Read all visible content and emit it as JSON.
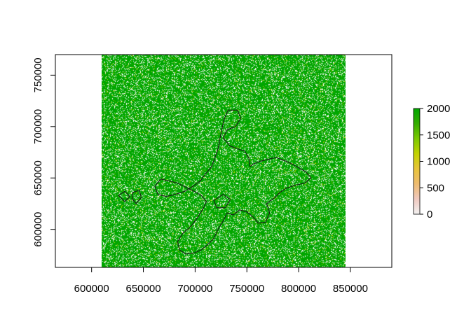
{
  "chart_data": {
    "type": "heatmap",
    "title": "",
    "xlabel": "",
    "ylabel": "",
    "xlim": [
      565000,
      890000
    ],
    "ylim": [
      563000,
      770000
    ],
    "raster_extent": {
      "x": [
        610000,
        845000
      ],
      "y": [
        563000,
        770000
      ]
    },
    "x_ticks": [
      600000,
      650000,
      700000,
      750000,
      800000,
      850000
    ],
    "x_tick_labels": [
      "600000",
      "650000",
      "700000",
      "750000",
      "800000",
      "850000"
    ],
    "y_ticks": [
      600000,
      650000,
      700000,
      750000
    ],
    "y_tick_labels": [
      "600000",
      "650000",
      "700000",
      "750000"
    ],
    "legend": {
      "placement": "right",
      "min": 0,
      "max": 2000,
      "ticks": [
        0,
        500,
        1000,
        1500,
        2000
      ],
      "tick_labels": [
        "0",
        "500",
        "1000",
        "1500",
        "2000"
      ],
      "colors": [
        "#f2f2f2",
        "#f0c9c0",
        "#eebb70",
        "#e8c43a",
        "#c3d200",
        "#7cc900",
        "#34ad00",
        "#00a600"
      ]
    },
    "value_probabilities": {
      "high": 0.78,
      "mid": 0.06,
      "low": 0.16
    },
    "outline_color": "#1a1a1a",
    "outline": [
      [
        732000,
        716000
      ],
      [
        741000,
        716000
      ],
      [
        744000,
        708000
      ],
      [
        739000,
        700000
      ],
      [
        731000,
        697000
      ],
      [
        727000,
        689000
      ],
      [
        734000,
        681000
      ],
      [
        742000,
        678000
      ],
      [
        748000,
        676000
      ],
      [
        752000,
        669000
      ],
      [
        753000,
        661000
      ],
      [
        757000,
        664000
      ],
      [
        762000,
        666000
      ],
      [
        770000,
        668000
      ],
      [
        778000,
        670000
      ],
      [
        786000,
        667000
      ],
      [
        793000,
        664000
      ],
      [
        800000,
        660000
      ],
      [
        807000,
        656000
      ],
      [
        812000,
        650000
      ],
      [
        806000,
        645000
      ],
      [
        797000,
        643000
      ],
      [
        788000,
        640000
      ],
      [
        782000,
        636000
      ],
      [
        776000,
        630000
      ],
      [
        769000,
        625000
      ],
      [
        772000,
        616000
      ],
      [
        768000,
        607000
      ],
      [
        761000,
        606000
      ],
      [
        756000,
        612000
      ],
      [
        750000,
        617000
      ],
      [
        743000,
        619000
      ],
      [
        737000,
        614000
      ],
      [
        731000,
        616000
      ],
      [
        727000,
        608000
      ],
      [
        722000,
        600000
      ],
      [
        718000,
        591000
      ],
      [
        712000,
        585000
      ],
      [
        706000,
        580000
      ],
      [
        699000,
        577000
      ],
      [
        691000,
        576000
      ],
      [
        685000,
        580000
      ],
      [
        683000,
        588000
      ],
      [
        688000,
        596000
      ],
      [
        696000,
        603000
      ],
      [
        702000,
        611000
      ],
      [
        707000,
        619000
      ],
      [
        711000,
        627000
      ],
      [
        706000,
        633000
      ],
      [
        699000,
        637000
      ],
      [
        691000,
        641000
      ],
      [
        683000,
        645000
      ],
      [
        675000,
        647000
      ],
      [
        667000,
        649000
      ],
      [
        661000,
        642000
      ],
      [
        664000,
        634000
      ],
      [
        672000,
        632000
      ],
      [
        681000,
        634000
      ],
      [
        690000,
        637000
      ],
      [
        698000,
        642000
      ],
      [
        705000,
        647000
      ],
      [
        710000,
        654000
      ],
      [
        716000,
        661000
      ],
      [
        719000,
        669000
      ],
      [
        722000,
        678000
      ],
      [
        724000,
        688000
      ],
      [
        726000,
        698000
      ],
      [
        728000,
        707000
      ],
      [
        732000,
        716000
      ]
    ],
    "islands": [
      [
        [
          626000,
          633000
        ],
        [
          632000,
          637000
        ],
        [
          637000,
          632000
        ],
        [
          632000,
          627000
        ],
        [
          626000,
          633000
        ]
      ],
      [
        [
          640000,
          636000
        ],
        [
          646000,
          638000
        ],
        [
          648000,
          631000
        ],
        [
          643000,
          625000
        ],
        [
          639000,
          630000
        ],
        [
          640000,
          636000
        ]
      ],
      [
        [
          718000,
          628000
        ],
        [
          727000,
          634000
        ],
        [
          734000,
          629000
        ],
        [
          729000,
          621000
        ],
        [
          721000,
          621000
        ],
        [
          718000,
          628000
        ]
      ]
    ]
  }
}
